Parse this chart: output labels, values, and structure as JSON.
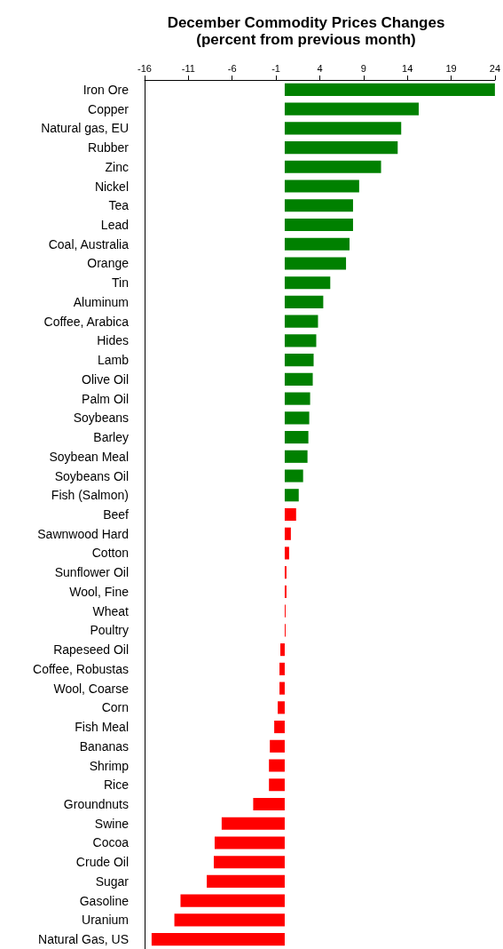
{
  "chart_data": {
    "type": "bar",
    "orientation": "horizontal",
    "title": "December Commodity Prices Changes",
    "subtitle": "(percent from previous month)",
    "categories": [
      "Iron Ore",
      "Copper",
      "Natural gas, EU",
      "Rubber",
      "Zinc",
      "Nickel",
      "Tea",
      "Lead",
      "Coal, Australia",
      "Orange",
      "Tin",
      "Aluminum",
      "Coffee, Arabica",
      "Hides",
      "Lamb",
      "Olive Oil",
      "Palm Oil",
      "Soybeans",
      "Barley",
      "Soybean Meal",
      "Soybeans Oil",
      "Fish (Salmon)",
      "Beef",
      "Sawnwood Hard",
      "Cotton",
      "Sunflower Oil",
      "Wool, Fine",
      "Wheat",
      "Poultry",
      "Rapeseed Oil",
      "Coffee, Robustas",
      "Wool, Coarse",
      "Corn",
      "Fish Meal",
      "Bananas",
      "Shrimp",
      "Rice",
      "Groundnuts",
      "Swine",
      "Cocoa",
      "Crude Oil",
      "Sugar",
      "Gasoline",
      "Uranium",
      "Natural Gas, US"
    ],
    "values": [
      24,
      15.3,
      13.3,
      12.9,
      11,
      8.5,
      7.8,
      7.8,
      7.4,
      7,
      5.2,
      4.4,
      3.8,
      3.6,
      3.3,
      3.2,
      2.9,
      2.8,
      2.7,
      2.6,
      2.1,
      1.6,
      1.3,
      0.7,
      0.5,
      0.2,
      0.2,
      0.1,
      0.1,
      -0.5,
      -0.6,
      -0.6,
      -0.8,
      -1.2,
      -1.7,
      -1.8,
      -1.8,
      -3.6,
      -7.2,
      -8,
      -8.1,
      -8.9,
      -11.9,
      -12.6,
      -15.2
    ],
    "colors": [
      "#008000",
      "#008000",
      "#008000",
      "#008000",
      "#008000",
      "#008000",
      "#008000",
      "#008000",
      "#008000",
      "#008000",
      "#008000",
      "#008000",
      "#008000",
      "#008000",
      "#008000",
      "#008000",
      "#008000",
      "#008000",
      "#008000",
      "#008000",
      "#008000",
      "#008000",
      "#ff0000",
      "#ff0000",
      "#ff0000",
      "#ff0000",
      "#ff0000",
      "#ff0000",
      "#ff0000",
      "#ff0000",
      "#ff0000",
      "#ff0000",
      "#ff0000",
      "#ff0000",
      "#ff0000",
      "#ff0000",
      "#ff0000",
      "#ff0000",
      "#ff0000",
      "#ff0000",
      "#ff0000",
      "#ff0000",
      "#ff0000",
      "#ff0000",
      "#ff0000"
    ],
    "xlim": [
      -16,
      24
    ],
    "xticks": [
      -16,
      -11,
      -6,
      -1,
      4,
      9,
      14,
      19,
      24
    ],
    "grid": false
  }
}
